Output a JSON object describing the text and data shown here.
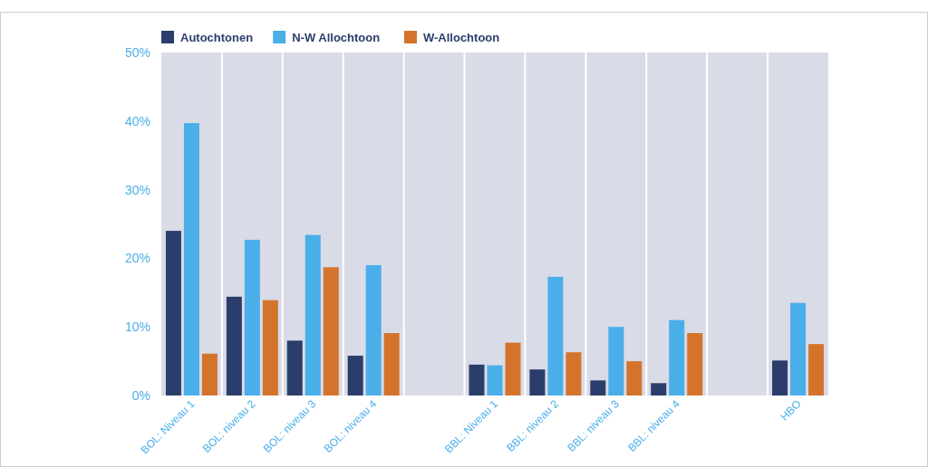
{
  "chart_data": {
    "type": "bar",
    "categories": [
      "BOL: Niveau 1",
      "BOL: niveau 2",
      "BOL: niveau 3",
      "BOL: niveau 4",
      null,
      "BBL: Niveau 1",
      "BBL: niveau 2",
      "BBL: niveau 3",
      "BBL: niveau 4",
      null,
      "HBO"
    ],
    "series": [
      {
        "name": "Autochtonen",
        "color": "#2b3d6b",
        "values": [
          24.0,
          14.4,
          8.0,
          5.8,
          null,
          4.5,
          3.8,
          2.2,
          1.8,
          null,
          5.1
        ]
      },
      {
        "name": "N-W Allochtoon",
        "color": "#4aaee8",
        "values": [
          39.7,
          22.7,
          23.4,
          19.0,
          null,
          4.4,
          17.3,
          10.0,
          11.0,
          null,
          13.5
        ]
      },
      {
        "name": "W-Allochtoon",
        "color": "#d4742c",
        "values": [
          6.1,
          13.9,
          18.7,
          9.1,
          null,
          7.7,
          6.3,
          5.0,
          9.1,
          null,
          7.5
        ]
      }
    ],
    "ylim": [
      0,
      50
    ],
    "yticks": [
      {
        "value": 0,
        "label": "0%"
      },
      {
        "value": 10,
        "label": "10%"
      },
      {
        "value": 20,
        "label": "20%"
      },
      {
        "value": 30,
        "label": "30%"
      },
      {
        "value": 40,
        "label": "40%"
      },
      {
        "value": 50,
        "label": "50%"
      }
    ],
    "grid": "x",
    "legend": "top left"
  }
}
